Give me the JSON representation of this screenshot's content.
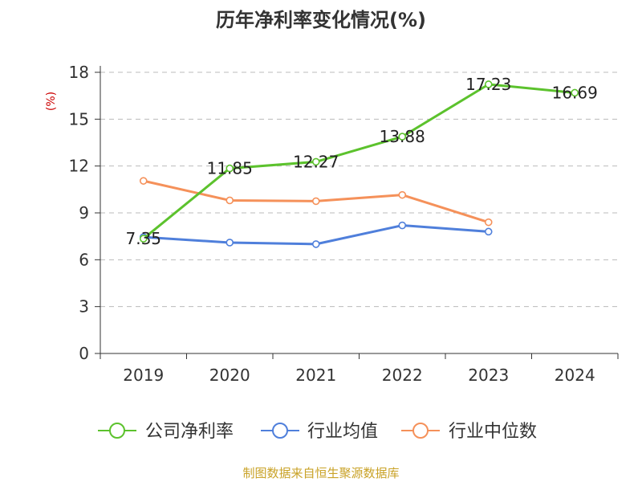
{
  "chart_data": {
    "type": "line",
    "title": "历年净利率变化情况(%)",
    "ylabel": "(%)",
    "xlabel": "",
    "ylim": [
      0,
      18
    ],
    "yticks": [
      0,
      3,
      6,
      9,
      12,
      15,
      18
    ],
    "categories": [
      "2019",
      "2020",
      "2021",
      "2022",
      "2023",
      "2024"
    ],
    "grid": true,
    "legend_position": "bottom",
    "series": [
      {
        "name": "公司净利率",
        "color": "#5cc22d",
        "values": [
          7.35,
          11.85,
          12.27,
          13.88,
          17.23,
          16.69
        ],
        "labels": [
          "7.35",
          "11.85",
          "12.27",
          "13.88",
          "17.23",
          "16.69"
        ]
      },
      {
        "name": "行业均值",
        "color": "#4f7fdb",
        "values": [
          7.45,
          7.1,
          7.0,
          8.2,
          7.8,
          null
        ]
      },
      {
        "name": "行业中位数",
        "color": "#f5915a",
        "values": [
          11.05,
          9.8,
          9.75,
          10.15,
          8.4,
          null
        ]
      }
    ]
  },
  "source": "制图数据来自恒生聚源数据库"
}
